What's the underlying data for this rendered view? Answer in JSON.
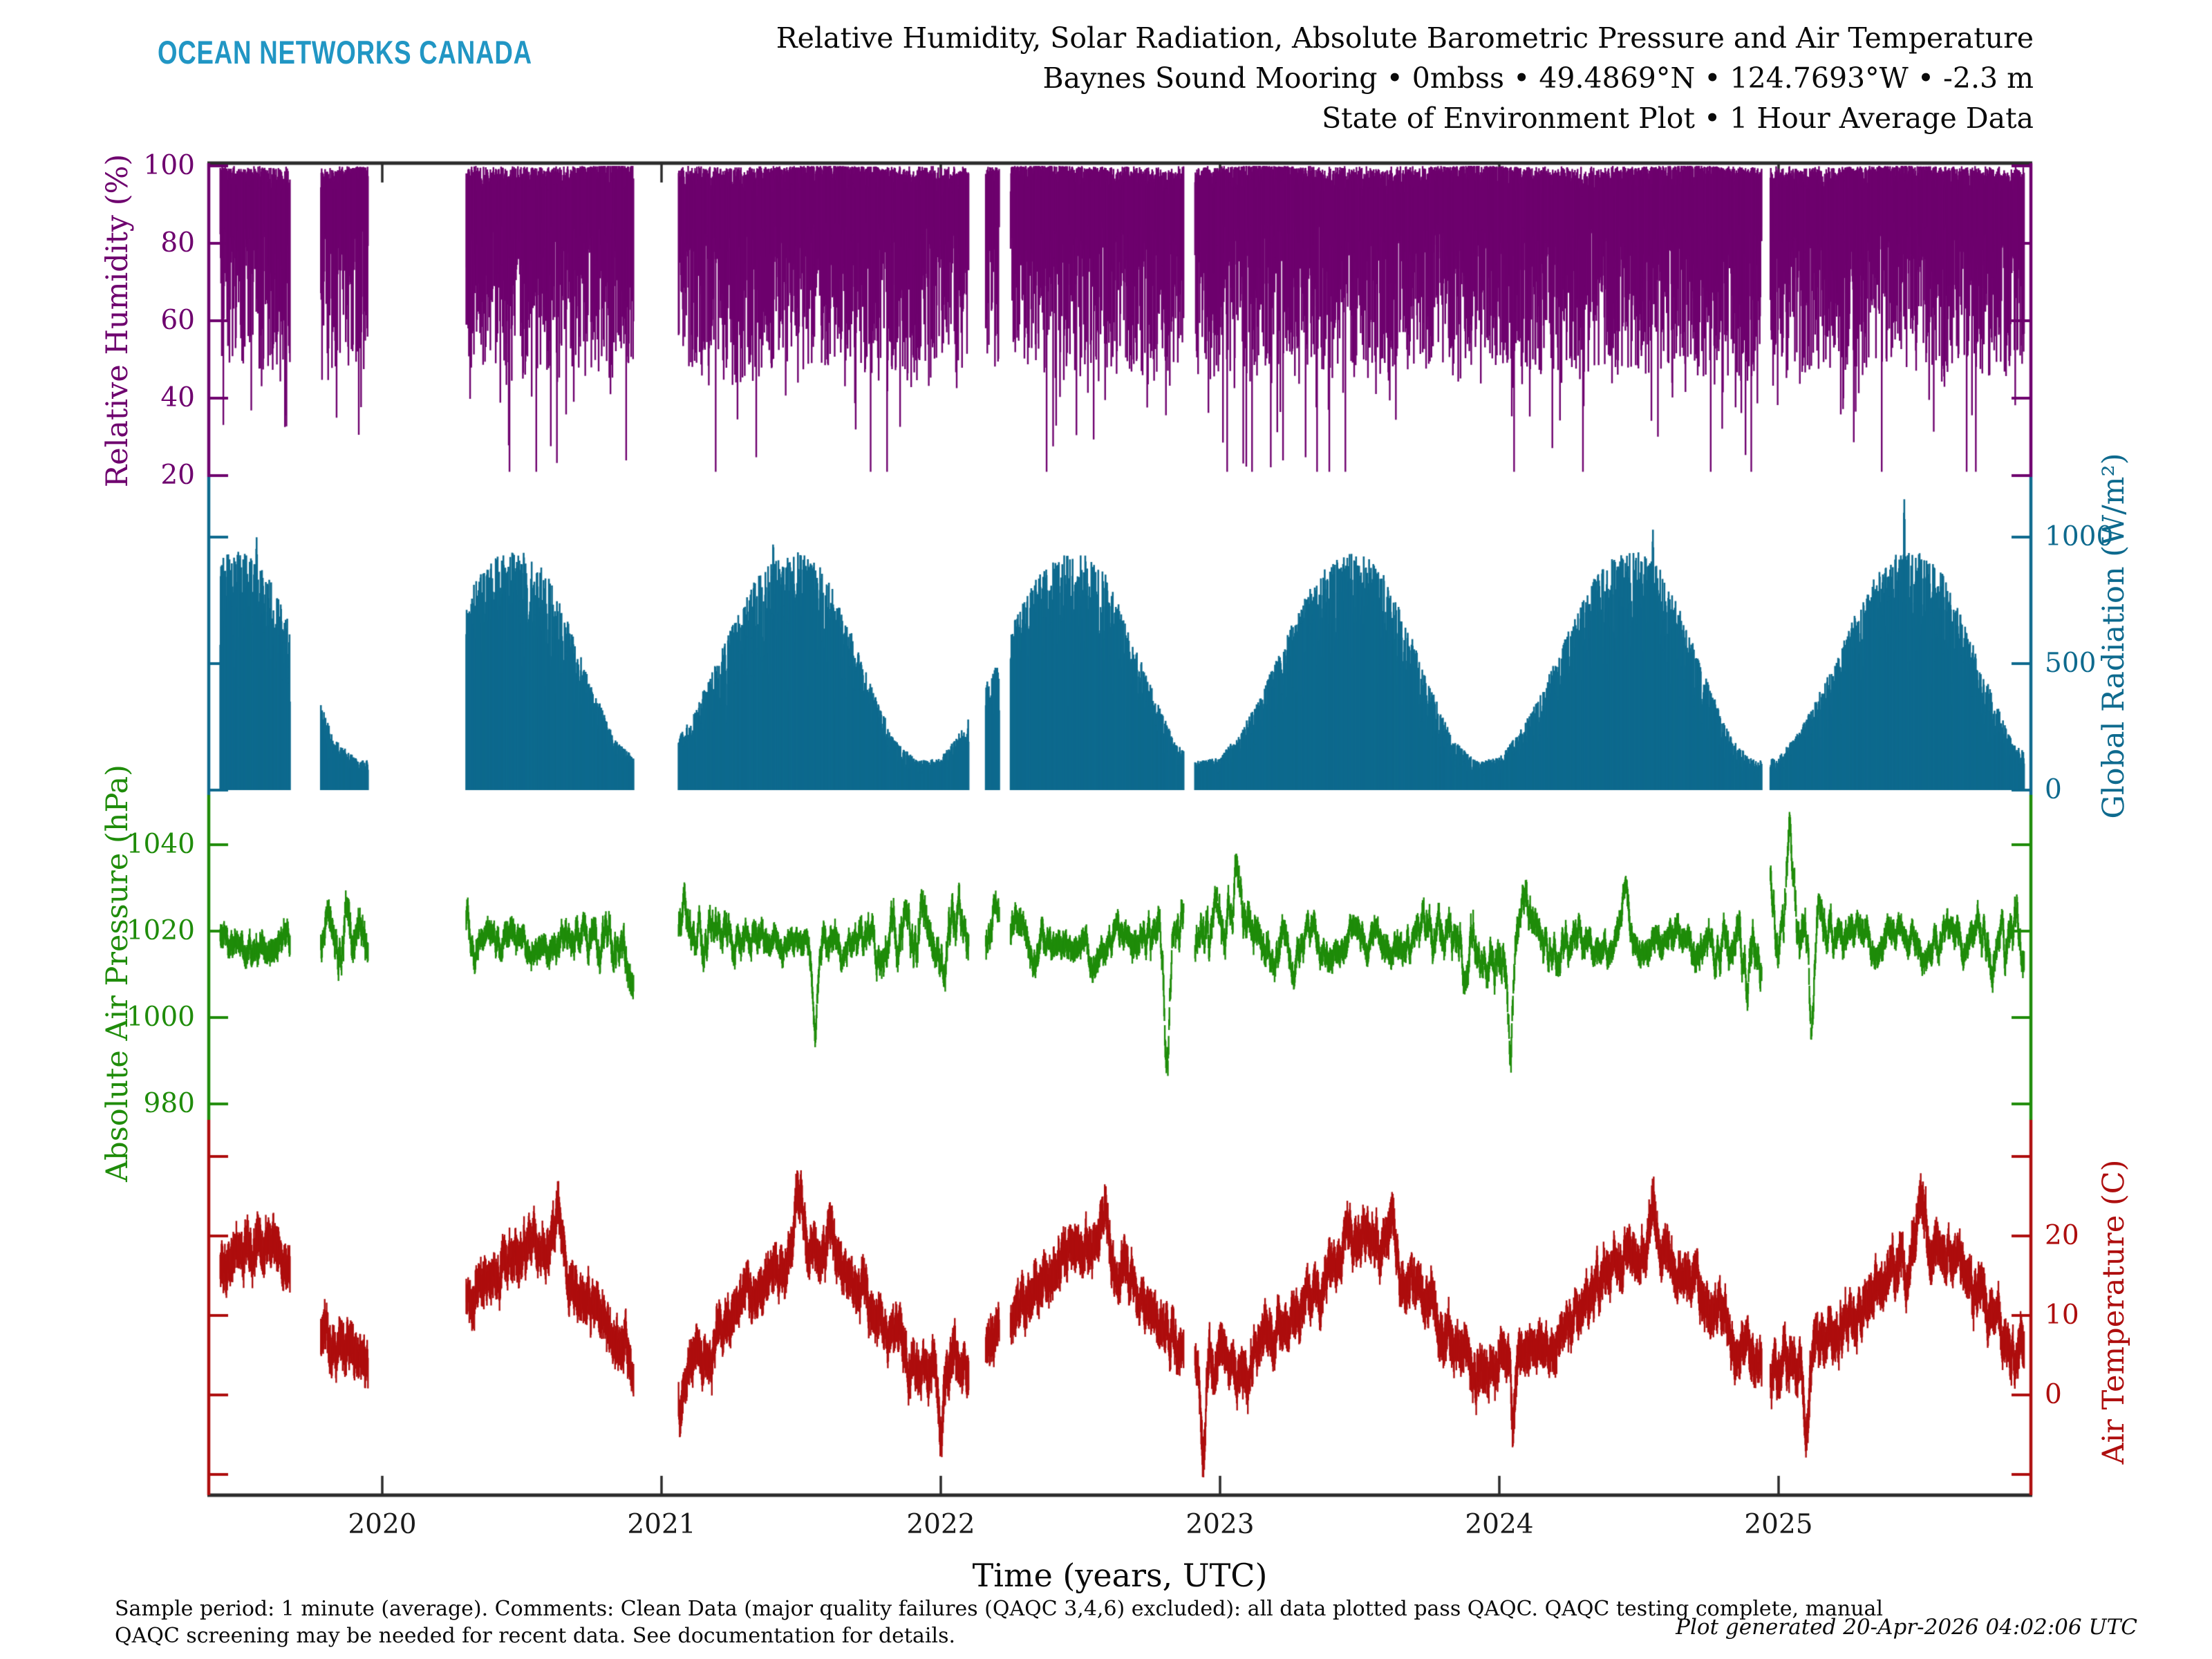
{
  "header": {
    "logo": "OCEAN NETWORKS CANADA",
    "title_line1": "Relative Humidity, Solar Radiation, Absolute Barometric Pressure and Air Temperature",
    "title_line2": "Baynes Sound Mooring • 0mbss • 49.4869°N • 124.7693°W • -2.3 m",
    "title_line3": "State of Environment Plot • 1 Hour Average Data"
  },
  "footer": {
    "caption_line1": "Sample period: 1 minute (average). Comments: Clean Data (major quality failures (QAQC 3,4,6) excluded): all data plotted pass QAQC. QAQC testing complete, manual",
    "caption_line2": "QAQC screening may be needed for recent data. See documentation for details.",
    "generated": "Plot generated 20-Apr-2026 04:02:06 UTC"
  },
  "chart_data": {
    "type": "line",
    "frame_color": "#2b2b2b",
    "x": {
      "label": "Time (years, UTC)",
      "ticks": [
        2020,
        2021,
        2022,
        2023,
        2024,
        2025
      ],
      "range": [
        2019.37,
        2025.91
      ],
      "data_start": 2019.42,
      "data_end": 2025.88
    },
    "gaps": [
      [
        2019.67,
        2019.78
      ],
      [
        2019.95,
        2020.3
      ],
      [
        2020.9,
        2021.06
      ],
      [
        2022.1,
        2022.16
      ],
      [
        2022.21,
        2022.25
      ],
      [
        2022.87,
        2022.91
      ],
      [
        2024.94,
        2024.97
      ]
    ],
    "panels": [
      {
        "id": "humidity",
        "label": "Relative Humidity (%)",
        "color": "#6e006e",
        "side": "left",
        "ticks": [
          100,
          80,
          60,
          40,
          20
        ],
        "ylim": [
          20,
          100
        ],
        "typical_top": 100,
        "band_depth_base": 14,
        "band_depth_var": 38,
        "deep_dip_prob": 0.045,
        "deep_dip_extra": 30,
        "min_clamp": 21
      },
      {
        "id": "radiation",
        "label": "Global Radiation (W/m²)",
        "color": "#0e6a8e",
        "side": "right",
        "ticks": [
          1000,
          500,
          0
        ],
        "ylim": [
          0,
          1100
        ],
        "monthly_peak": [
          130,
          250,
          430,
          640,
          830,
          930,
          945,
          870,
          660,
          420,
          200,
          115
        ],
        "spikes": [
          {
            "t": 2019.55,
            "v": 1000
          },
          {
            "t": 2021.4,
            "v": 980
          },
          {
            "t": 2024.55,
            "v": 1030
          },
          {
            "t": 2025.45,
            "v": 1150
          }
        ]
      },
      {
        "id": "pressure",
        "label": "Absolute Air Pressure (hPa)",
        "color": "#1f8c0a",
        "side": "left",
        "ticks": [
          1040,
          1020,
          1000,
          980
        ],
        "ylim": [
          975,
          1045
        ],
        "mean": 1016.8,
        "monthly_sigma": [
          1.9,
          1.7,
          1.5,
          1.2,
          1.0,
          0.85,
          0.8,
          0.85,
          1.05,
          1.4,
          1.7,
          1.9
        ],
        "events": [
          {
            "t": 2019.87,
            "dv": 15
          },
          {
            "t": 2021.02,
            "dv": -22
          },
          {
            "t": 2021.55,
            "dv": -20
          },
          {
            "t": 2022.2,
            "dv": 15
          },
          {
            "t": 2022.81,
            "dv": -32
          },
          {
            "t": 2023.06,
            "dv": 13
          },
          {
            "t": 2024.04,
            "dv": -20
          },
          {
            "t": 2024.45,
            "dv": 12
          },
          {
            "t": 2024.97,
            "dv": 18
          },
          {
            "t": 2025.04,
            "dv": 22
          },
          {
            "t": 2025.12,
            "dv": -24
          }
        ]
      },
      {
        "id": "temperature",
        "label": "Air Temperature (C)",
        "color": "#ae0e0e",
        "side": "right",
        "ticks": [
          20,
          10,
          0
        ],
        "ylim": [
          -12,
          30
        ],
        "monthly_mean": [
          3.4,
          4.3,
          6.2,
          9.2,
          12.7,
          15.8,
          18.3,
          18.4,
          15.4,
          10.8,
          6.4,
          3.9
        ],
        "heat_events": [
          {
            "t": 2020.63,
            "dv": 6.5
          },
          {
            "t": 2021.49,
            "dv": 9
          },
          {
            "t": 2022.58,
            "dv": 6
          },
          {
            "t": 2023.45,
            "dv": 4
          },
          {
            "t": 2023.62,
            "dv": 4.5
          },
          {
            "t": 2024.55,
            "dv": 4.5
          },
          {
            "t": 2025.52,
            "dv": 4.5
          }
        ],
        "cold_events": [
          {
            "t": 2021.07,
            "dv": -5
          },
          {
            "t": 2022.0,
            "dv": -9
          },
          {
            "t": 2022.94,
            "dv": -11
          },
          {
            "t": 2023.1,
            "dv": -4
          },
          {
            "t": 2024.05,
            "dv": -9
          },
          {
            "t": 2025.1,
            "dv": -6
          }
        ]
      }
    ]
  }
}
